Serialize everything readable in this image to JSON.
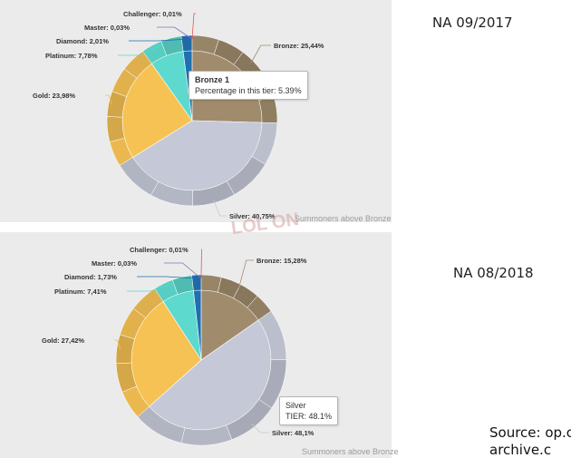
{
  "chart_data": [
    {
      "type": "pie",
      "title": "NA 09/2017",
      "footer": "Summoners above Bronze",
      "slices": [
        {
          "name": "Bronze",
          "value": 25.44,
          "label": "Bronze: 25,44%",
          "color": "#a08c6c"
        },
        {
          "name": "Silver",
          "value": 40.75,
          "label": "Silver: 40,75%",
          "color": "#c5c8d6"
        },
        {
          "name": "Gold",
          "value": 23.98,
          "label": "Gold: 23,98%",
          "color": "#f7c254"
        },
        {
          "name": "Platinum",
          "value": 7.78,
          "label": "Platinum: 7,78%",
          "color": "#5dd9cd"
        },
        {
          "name": "Diamond",
          "value": 2.01,
          "label": "Diamond: 2,01%",
          "color": "#1f70b0"
        },
        {
          "name": "Master",
          "value": 0.03,
          "label": "Master: 0,03%",
          "color": "#8a6eb5"
        },
        {
          "name": "Challenger",
          "value": 0.01,
          "label": "Challenger: 0,01%",
          "color": "#e05a5a"
        }
      ],
      "tooltip": {
        "title": "Bronze 1",
        "text": "Percentage in this tier: 5.39%"
      }
    },
    {
      "type": "pie",
      "title": "NA 08/2018",
      "footer": "Summoners above Bronze",
      "slices": [
        {
          "name": "Bronze",
          "value": 15.28,
          "label": "Bronze: 15,28%",
          "color": "#a08c6c"
        },
        {
          "name": "Silver",
          "value": 48.1,
          "label": "Silver: 48,1%",
          "color": "#c5c8d6"
        },
        {
          "name": "Gold",
          "value": 27.42,
          "label": "Gold: 27,42%",
          "color": "#f7c254"
        },
        {
          "name": "Platinum",
          "value": 7.41,
          "label": "Platinum: 7,41%",
          "color": "#5dd9cd"
        },
        {
          "name": "Diamond",
          "value": 1.73,
          "label": "Diamond: 1,73%",
          "color": "#1f70b0"
        },
        {
          "name": "Master",
          "value": 0.03,
          "label": "Master: 0,03%",
          "color": "#8a6eb5"
        },
        {
          "name": "Challenger",
          "value": 0.01,
          "label": "Challenger: 0,01%",
          "color": "#e05a5a"
        }
      ],
      "tooltip": {
        "title": "Silver",
        "text": "TIER: 48.1%"
      }
    }
  ],
  "source": {
    "line1": "Source: op.c",
    "line2": "archive.c"
  },
  "watermark": "LOL ON"
}
